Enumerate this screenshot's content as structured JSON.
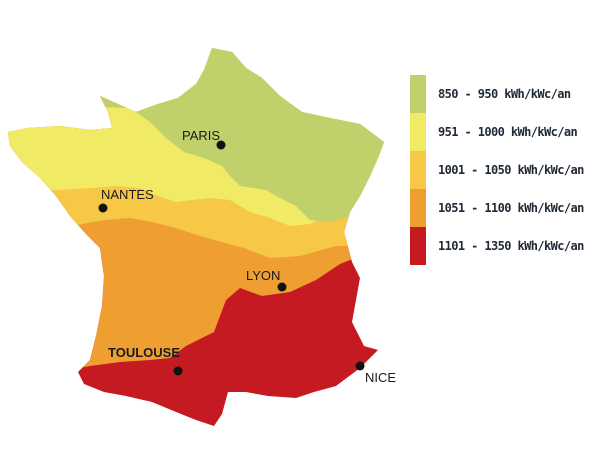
{
  "legend": {
    "items": [
      {
        "label": "850 - 950 kWh/kWc/an",
        "color": "#c0d16c"
      },
      {
        "label": "951 - 1000 kWh/kWc/an",
        "color": "#f1ea65"
      },
      {
        "label": "1001 - 1050 kWh/kWc/an",
        "color": "#f7c846"
      },
      {
        "label": "1051 - 1100 kWh/kWc/an",
        "color": "#ef9e32"
      },
      {
        "label": "1101 - 1350 kWh/kWc/an",
        "color": "#c61a22"
      }
    ]
  },
  "cities": {
    "paris": "PARIS",
    "nantes": "NANTES",
    "lyon": "LYON",
    "toulouse": "TOULOUSE",
    "nice": "NICE"
  }
}
